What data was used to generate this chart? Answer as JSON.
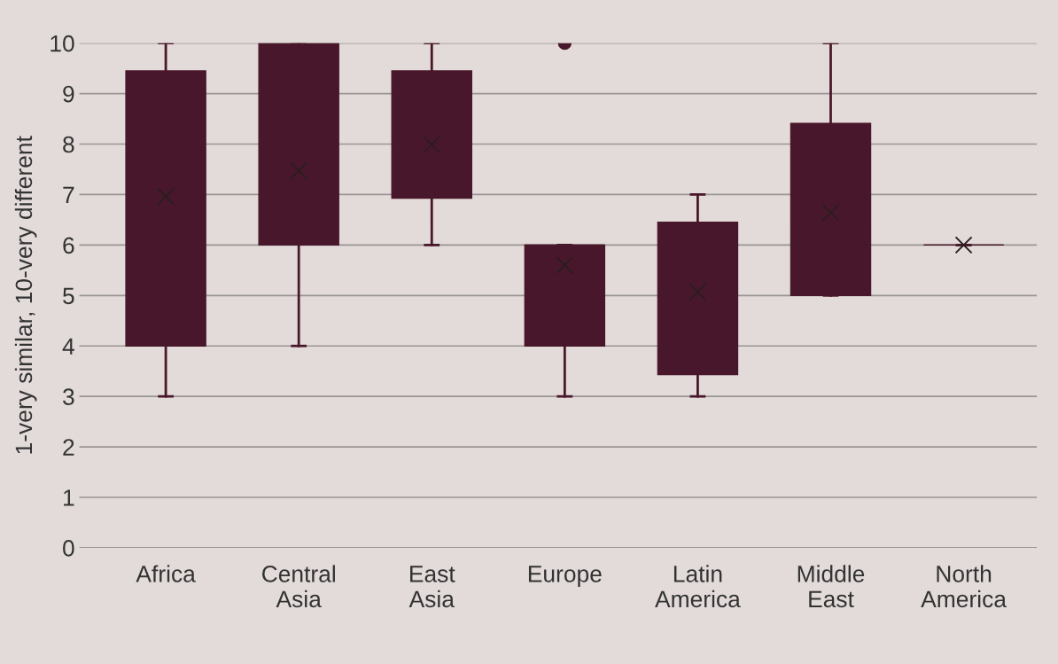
{
  "chart_data": {
    "type": "box",
    "ylabel": "1-very similar, 10-very different",
    "categories": [
      "Africa",
      "Central\nAsia",
      "East\nAsia",
      "Europe",
      "Latin\nAmerica",
      "Middle\nEast",
      "North\nAmerica"
    ],
    "boxes": [
      {
        "low": 3,
        "q1": 4,
        "median": 7,
        "q3": 9.45,
        "high": 10,
        "mean": 6.96
      },
      {
        "low": 4,
        "q1": 6,
        "median": 8,
        "q3": 10,
        "high": 10,
        "mean": 7.47
      },
      {
        "low": 6,
        "q1": 6.93,
        "median": 8,
        "q3": 9.45,
        "high": 10,
        "mean": 7.99
      },
      {
        "low": 3,
        "q1": 4,
        "median": 6,
        "q3": 6,
        "high": 6,
        "mean": 5.6,
        "outliers": [
          10
        ]
      },
      {
        "low": 3,
        "q1": 3.43,
        "median": 5,
        "q3": 6.45,
        "high": 7,
        "mean": 5.07
      },
      {
        "low": 5,
        "q1": 5,
        "median": 6,
        "q3": 8.41,
        "high": 10,
        "mean": 6.64
      },
      {
        "low": 6,
        "q1": 6,
        "median": 6,
        "q3": 6,
        "high": 6,
        "mean": 6
      }
    ],
    "color": "#49172b",
    "ylim": [
      0,
      10
    ],
    "yticks": [
      0,
      1,
      2,
      3,
      4,
      5,
      6,
      7,
      8,
      9,
      10
    ],
    "grid": "y",
    "legend": false
  }
}
